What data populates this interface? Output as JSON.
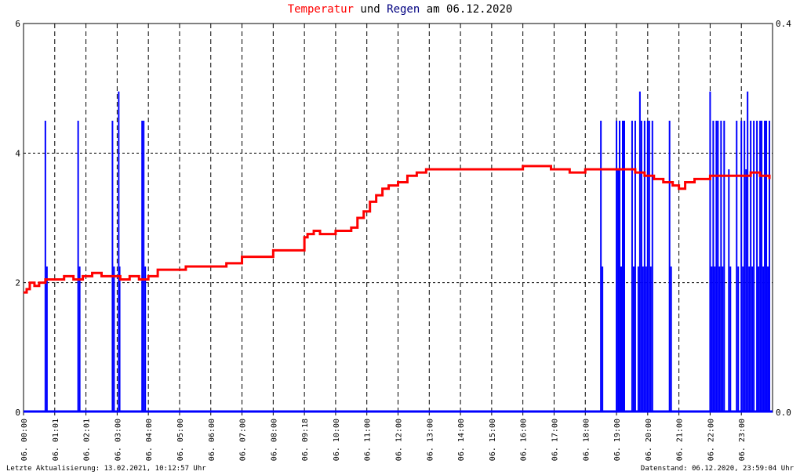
{
  "title": {
    "part1": "Temperatur",
    "part2": " und ",
    "part3": "Regen",
    "part4": " am 06.12.2020",
    "color1": "#ff0000",
    "color3": "#000080",
    "color_text": "#000000"
  },
  "footer": {
    "left": "Letzte Aktualisierung: 13.02.2021, 10:12:57 Uhr",
    "right": "Datenstand: 06.12.2020, 23:59:04 Uhr"
  },
  "chart_data": {
    "type": "line",
    "title": "Temperatur und Regen am 06.12.2020",
    "xlabel": "",
    "ylabel": "",
    "x_range_hours": [
      0,
      24
    ],
    "ylim_left": [
      0,
      6
    ],
    "ylim_right": [
      0.0,
      0.4
    ],
    "yticks_left": [
      "0",
      "2",
      "4",
      "6"
    ],
    "yticks_right": [
      "0.0",
      "0.4"
    ],
    "grid": true,
    "xticks": [
      {
        "h": 0.0,
        "label": "06. 00:00"
      },
      {
        "h": 1.0,
        "label": "06. 01:01"
      },
      {
        "h": 2.0,
        "label": "06. 02:01"
      },
      {
        "h": 3.0,
        "label": "06. 03:00"
      },
      {
        "h": 4.0,
        "label": "06. 04:00"
      },
      {
        "h": 5.0,
        "label": "06. 05:00"
      },
      {
        "h": 6.0,
        "label": "06. 06:00"
      },
      {
        "h": 7.0,
        "label": "06. 07:00"
      },
      {
        "h": 8.0,
        "label": "06. 08:00"
      },
      {
        "h": 9.0,
        "label": "06. 09:18"
      },
      {
        "h": 10.0,
        "label": "06. 10:00"
      },
      {
        "h": 11.0,
        "label": "06. 11:00"
      },
      {
        "h": 12.0,
        "label": "06. 12:00"
      },
      {
        "h": 13.0,
        "label": "06. 13:00"
      },
      {
        "h": 14.0,
        "label": "06. 14:00"
      },
      {
        "h": 15.0,
        "label": "06. 15:00"
      },
      {
        "h": 16.0,
        "label": "06. 16:00"
      },
      {
        "h": 17.0,
        "label": "06. 17:00"
      },
      {
        "h": 18.0,
        "label": "06. 18:00"
      },
      {
        "h": 19.0,
        "label": "06. 19:00"
      },
      {
        "h": 20.0,
        "label": "06. 20:00"
      },
      {
        "h": 21.0,
        "label": "06. 21:00"
      },
      {
        "h": 22.0,
        "label": "06. 22:00"
      },
      {
        "h": 23.0,
        "label": "06. 23:00"
      }
    ],
    "series": [
      {
        "name": "Temperatur",
        "axis": "left",
        "color": "#ff0000",
        "x": [
          0.0,
          0.1,
          0.2,
          0.35,
          0.5,
          0.7,
          1.0,
          1.3,
          1.6,
          1.9,
          2.2,
          2.5,
          2.8,
          3.1,
          3.4,
          3.7,
          4.0,
          4.3,
          4.6,
          4.9,
          5.2,
          5.6,
          6.0,
          6.5,
          7.0,
          7.5,
          8.0,
          8.5,
          8.9,
          9.0,
          9.1,
          9.3,
          9.5,
          9.8,
          10.0,
          10.3,
          10.5,
          10.7,
          10.9,
          11.1,
          11.3,
          11.5,
          11.7,
          12.0,
          12.3,
          12.6,
          12.9,
          13.2,
          13.5,
          14.0,
          14.5,
          15.0,
          15.5,
          16.0,
          16.3,
          16.6,
          16.9,
          17.2,
          17.5,
          18.0,
          18.5,
          19.0,
          19.3,
          19.6,
          19.9,
          20.2,
          20.5,
          20.8,
          21.0,
          21.2,
          21.5,
          21.8,
          22.0,
          22.3,
          22.6,
          23.0,
          23.3,
          23.6,
          23.9
        ],
        "values": [
          1.85,
          1.9,
          2.0,
          1.95,
          2.0,
          2.05,
          2.05,
          2.1,
          2.05,
          2.1,
          2.15,
          2.1,
          2.1,
          2.05,
          2.1,
          2.05,
          2.1,
          2.2,
          2.2,
          2.2,
          2.25,
          2.25,
          2.25,
          2.3,
          2.4,
          2.4,
          2.5,
          2.5,
          2.5,
          2.7,
          2.75,
          2.8,
          2.75,
          2.75,
          2.8,
          2.8,
          2.85,
          3.0,
          3.1,
          3.25,
          3.35,
          3.45,
          3.5,
          3.55,
          3.65,
          3.7,
          3.75,
          3.75,
          3.75,
          3.75,
          3.75,
          3.75,
          3.75,
          3.8,
          3.8,
          3.8,
          3.75,
          3.75,
          3.7,
          3.75,
          3.75,
          3.75,
          3.75,
          3.7,
          3.65,
          3.6,
          3.55,
          3.5,
          3.45,
          3.55,
          3.6,
          3.6,
          3.65,
          3.65,
          3.65,
          3.65,
          3.7,
          3.65,
          3.6
        ]
      },
      {
        "name": "Regen",
        "axis": "right",
        "color": "#0000ff",
        "type": "spikes",
        "x": [
          0.7,
          0.75,
          1.75,
          1.8,
          2.85,
          2.9,
          3.05,
          3.08,
          3.8,
          3.85,
          3.9,
          18.5,
          18.55,
          19.0,
          19.05,
          19.1,
          19.15,
          19.2,
          19.25,
          19.5,
          19.55,
          19.6,
          19.7,
          19.75,
          19.8,
          19.85,
          19.9,
          19.95,
          20.0,
          20.05,
          20.1,
          20.15,
          20.7,
          20.75,
          22.0,
          22.05,
          22.1,
          22.15,
          22.2,
          22.25,
          22.3,
          22.35,
          22.4,
          22.45,
          22.6,
          22.65,
          22.85,
          22.9,
          23.0,
          23.05,
          23.1,
          23.15,
          23.2,
          23.25,
          23.3,
          23.35,
          23.4,
          23.5,
          23.55,
          23.6,
          23.65,
          23.7,
          23.75,
          23.8,
          23.85,
          23.9
        ],
        "values": [
          0.3,
          0.15,
          0.3,
          0.15,
          0.3,
          0.15,
          0.33,
          0.15,
          0.3,
          0.3,
          0.15,
          0.3,
          0.15,
          0.3,
          0.25,
          0.3,
          0.15,
          0.3,
          0.3,
          0.3,
          0.15,
          0.3,
          0.15,
          0.33,
          0.3,
          0.15,
          0.3,
          0.15,
          0.3,
          0.3,
          0.15,
          0.3,
          0.3,
          0.15,
          0.33,
          0.15,
          0.3,
          0.15,
          0.3,
          0.3,
          0.15,
          0.3,
          0.15,
          0.3,
          0.25,
          0.15,
          0.3,
          0.15,
          0.3,
          0.15,
          0.3,
          0.25,
          0.33,
          0.15,
          0.3,
          0.15,
          0.3,
          0.3,
          0.15,
          0.3,
          0.3,
          0.15,
          0.3,
          0.3,
          0.15,
          0.3
        ]
      }
    ]
  }
}
